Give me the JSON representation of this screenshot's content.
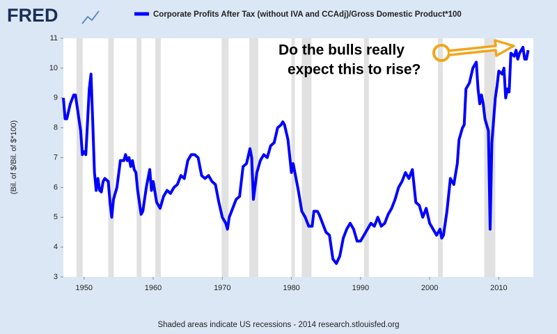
{
  "logo": "FRED",
  "chart_data": {
    "type": "line",
    "title": "Corporate Profits After Tax (without IVA and CCAdj)/Gross Domestic Product*100",
    "y_label": "(Bil. of $/Bil. of $*100)",
    "footer": "Shaded areas indicate US recessions - 2014 research.stlouisfed.org",
    "annotation": [
      "Do the bulls really",
      "expect this to rise?"
    ],
    "xlim": [
      1947,
      2015
    ],
    "xticks": [
      1950,
      1960,
      1970,
      1980,
      1990,
      2000,
      2010
    ],
    "ylim": [
      3,
      11
    ],
    "yticks": [
      3,
      4,
      5,
      6,
      7,
      8,
      9,
      10,
      11
    ],
    "grid": false,
    "recessions": [
      [
        1948.9,
        1949.8
      ],
      [
        1953.5,
        1954.3
      ],
      [
        1957.6,
        1958.3
      ],
      [
        1960.3,
        1961.1
      ],
      [
        1969.9,
        1970.9
      ],
      [
        1973.9,
        1975.2
      ],
      [
        1980.0,
        1980.5
      ],
      [
        1981.5,
        1982.9
      ],
      [
        1990.5,
        1991.2
      ],
      [
        2001.2,
        2001.9
      ],
      [
        2007.9,
        2009.5
      ]
    ],
    "recession_color": "#e1e1e1",
    "x": [
      1947.0,
      1947.25,
      1947.5,
      1948.0,
      1948.5,
      1948.75,
      1949.0,
      1949.5,
      1949.75,
      1950.0,
      1950.25,
      1950.5,
      1950.75,
      1951.0,
      1951.25,
      1951.5,
      1951.75,
      1952.0,
      1952.25,
      1952.5,
      1952.75,
      1953.0,
      1953.5,
      1953.75,
      1954.0,
      1954.25,
      1954.75,
      1955.25,
      1955.75,
      1956.0,
      1956.25,
      1956.5,
      1956.75,
      1957.0,
      1957.25,
      1957.5,
      1957.75,
      1958.25,
      1958.5,
      1959.0,
      1959.5,
      1959.75,
      1960.0,
      1960.5,
      1961.0,
      1961.5,
      1962.0,
      1962.5,
      1963.0,
      1963.5,
      1964.0,
      1964.5,
      1965.0,
      1965.5,
      1966.0,
      1966.5,
      1967.0,
      1967.5,
      1968.0,
      1968.5,
      1969.0,
      1969.5,
      1970.0,
      1970.5,
      1970.75,
      1971.0,
      1971.5,
      1972.0,
      1972.5,
      1973.0,
      1973.5,
      1974.0,
      1974.25,
      1974.5,
      1975.0,
      1975.5,
      1976.0,
      1976.5,
      1977.0,
      1977.5,
      1978.0,
      1978.5,
      1978.75,
      1979.0,
      1979.5,
      1980.0,
      1980.25,
      1980.5,
      1981.0,
      1981.5,
      1982.0,
      1982.5,
      1983.0,
      1983.25,
      1983.75,
      1984.0,
      1984.5,
      1985.0,
      1985.5,
      1986.0,
      1986.5,
      1987.0,
      1987.5,
      1988.0,
      1988.5,
      1989.0,
      1989.5,
      1990.0,
      1990.5,
      1991.0,
      1991.5,
      1992.0,
      1992.5,
      1993.0,
      1993.5,
      1994.0,
      1994.5,
      1995.0,
      1995.5,
      1996.0,
      1996.5,
      1997.0,
      1997.5,
      1998.0,
      1998.5,
      1999.0,
      1999.5,
      2000.0,
      2000.5,
      2001.0,
      2001.5,
      2001.75,
      2002.0,
      2002.5,
      2003.0,
      2003.5,
      2004.0,
      2004.25,
      2004.75,
      2005.0,
      2005.25,
      2005.75,
      2006.25,
      2006.75,
      2007.0,
      2007.25,
      2007.5,
      2007.75,
      2008.0,
      2008.5,
      2008.75,
      2009.0,
      2009.5,
      2009.75,
      2010.0,
      2010.5,
      2010.75,
      2011.0,
      2011.25,
      2011.5,
      2011.75,
      2012.25,
      2012.5,
      2012.75,
      2013.0,
      2013.5,
      2013.75,
      2014.0,
      2014.25
    ],
    "series": [
      {
        "name": "Corporate Profits After Tax (without IVA and CCAdj)/Gross Domestic Product*100",
        "color": "#0000ff",
        "values": [
          9.0,
          8.3,
          8.3,
          8.8,
          9.1,
          9.1,
          8.7,
          7.9,
          7.1,
          7.2,
          7.1,
          8.2,
          9.3,
          9.8,
          8.2,
          6.5,
          5.9,
          6.3,
          5.9,
          5.85,
          6.2,
          6.3,
          6.2,
          5.5,
          5.0,
          5.6,
          6.0,
          6.9,
          6.9,
          7.1,
          6.9,
          7.0,
          6.7,
          6.9,
          6.6,
          6.5,
          5.9,
          5.1,
          5.2,
          6.0,
          6.6,
          5.9,
          6.2,
          5.5,
          5.3,
          5.7,
          5.9,
          5.8,
          6.0,
          6.1,
          6.4,
          6.3,
          6.9,
          7.1,
          7.1,
          7.0,
          6.4,
          6.3,
          6.4,
          6.2,
          6.1,
          5.5,
          5.0,
          4.8,
          4.6,
          5.0,
          5.3,
          5.6,
          5.7,
          6.7,
          6.8,
          7.3,
          7.0,
          5.6,
          6.5,
          6.9,
          7.1,
          7.0,
          7.4,
          7.5,
          8.0,
          8.1,
          8.2,
          8.1,
          7.6,
          6.5,
          6.8,
          6.5,
          5.9,
          5.2,
          5.0,
          4.7,
          4.7,
          5.2,
          5.2,
          5.1,
          4.8,
          4.5,
          4.4,
          3.6,
          3.45,
          3.7,
          4.3,
          4.6,
          4.8,
          4.6,
          4.2,
          4.2,
          4.4,
          4.6,
          4.8,
          4.7,
          5.0,
          4.7,
          4.8,
          5.1,
          5.3,
          5.6,
          6.0,
          6.2,
          6.5,
          6.3,
          6.6,
          5.5,
          5.4,
          5.0,
          5.3,
          4.8,
          4.6,
          4.4,
          4.6,
          4.3,
          4.4,
          5.2,
          6.3,
          6.1,
          6.8,
          7.6,
          8.0,
          8.1,
          9.3,
          9.5,
          10.0,
          10.2,
          9.3,
          8.8,
          9.1,
          8.8,
          8.3,
          7.9,
          4.6,
          7.5,
          9.0,
          9.4,
          9.9,
          9.8,
          10.0,
          9.0,
          9.3,
          9.2,
          10.5,
          10.4,
          10.6,
          10.3,
          10.5,
          10.7,
          10.3,
          10.3,
          10.6
        ]
      }
    ]
  }
}
